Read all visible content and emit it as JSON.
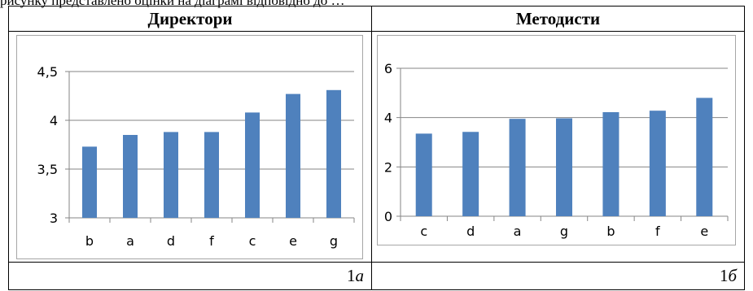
{
  "top_text": "рисунку представлено оцінки на діаграмі відповідно до …",
  "columns": [
    {
      "header": "Директори",
      "caption_num": "1",
      "caption_letter": "а"
    },
    {
      "header": "Методисти",
      "caption_num": "1",
      "caption_letter": "б"
    }
  ],
  "colors": {
    "bar": "#4f81bd",
    "grid": "#868686",
    "frame": "#a6a6a6"
  },
  "chart_data": [
    {
      "type": "bar",
      "title": "",
      "xlabel": "",
      "ylabel": "",
      "categories": [
        "b",
        "a",
        "d",
        "f",
        "c",
        "e",
        "g"
      ],
      "values": [
        3.73,
        3.85,
        3.88,
        3.88,
        4.08,
        4.27,
        4.31
      ],
      "ylim": [
        3,
        4.5
      ],
      "yticks": [
        3,
        3.5,
        4,
        4.5
      ],
      "ytick_labels": [
        "3",
        "3,5",
        "4",
        "4,5"
      ],
      "grid": true,
      "legend": "none"
    },
    {
      "type": "bar",
      "title": "",
      "xlabel": "",
      "ylabel": "",
      "categories": [
        "c",
        "d",
        "a",
        "g",
        "b",
        "f",
        "e"
      ],
      "values": [
        3.35,
        3.42,
        3.95,
        3.97,
        4.22,
        4.28,
        4.8
      ],
      "ylim": [
        0,
        6
      ],
      "yticks": [
        0,
        2,
        4,
        6
      ],
      "ytick_labels": [
        "0",
        "2",
        "4",
        "6"
      ],
      "grid": true,
      "legend": "none"
    }
  ]
}
